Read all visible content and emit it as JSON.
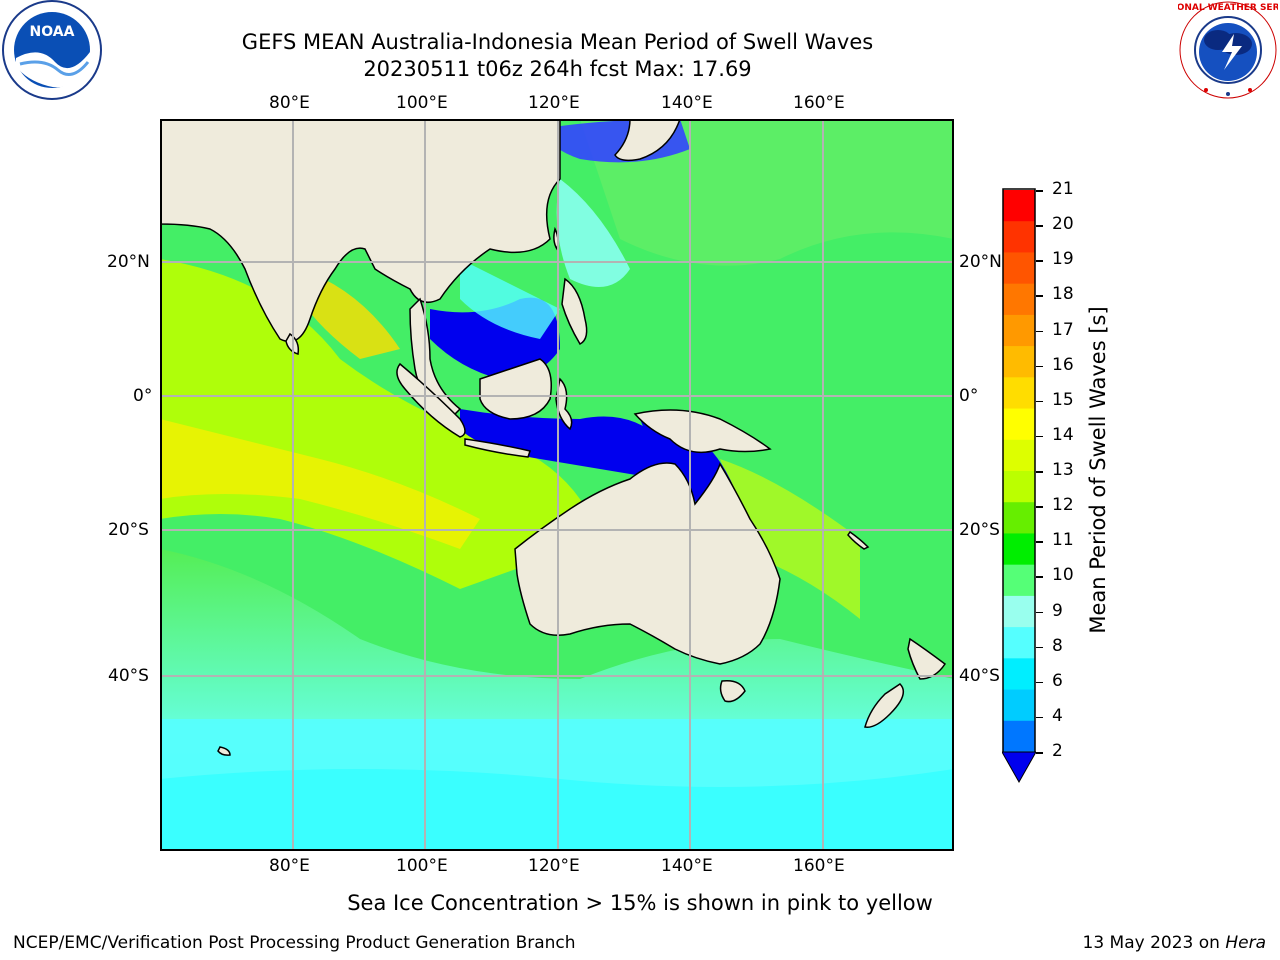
{
  "title": {
    "line1": "GEFS MEAN Australia-Indonesia Mean Period of Swell Waves",
    "line2": "20230511 t06z 264h fcst   Max: 17.69"
  },
  "logos": {
    "left": "noara-logo",
    "left_text": "NOAA",
    "right": "nws-logo",
    "right_text": "NATIONAL WEATHER SERVICE"
  },
  "map": {
    "lon_ticks": [
      "80°E",
      "100°E",
      "120°E",
      "140°E",
      "160°E"
    ],
    "lat_ticks": [
      "20°N",
      "0°",
      "20°S",
      "40°S"
    ]
  },
  "colorbar": {
    "label": "Mean Period of Swell Waves [s]",
    "ticks": [
      "21",
      "20",
      "19",
      "18",
      "17",
      "16",
      "15",
      "14",
      "13",
      "12",
      "11",
      "10",
      "9",
      "8",
      "6",
      "4",
      "2"
    ],
    "colors": [
      "#ff0000",
      "#ff3300",
      "#ff5500",
      "#ff7700",
      "#ff9900",
      "#ffbb00",
      "#ffdd00",
      "#ffff00",
      "#ddff00",
      "#bbff00",
      "#66ee00",
      "#00ee00",
      "#55ff77",
      "#99ffee",
      "#55ffff",
      "#00eeff",
      "#00ccff",
      "#0077ff"
    ],
    "extend_color": "#0000ee"
  },
  "footnote": "Sea Ice Concentration > 15% is shown in pink to yellow",
  "credit": "NCEP/EMC/Verification Post Processing Product Generation Branch",
  "date": {
    "text": "13 May 2023 on ",
    "machine": "Hera"
  }
}
